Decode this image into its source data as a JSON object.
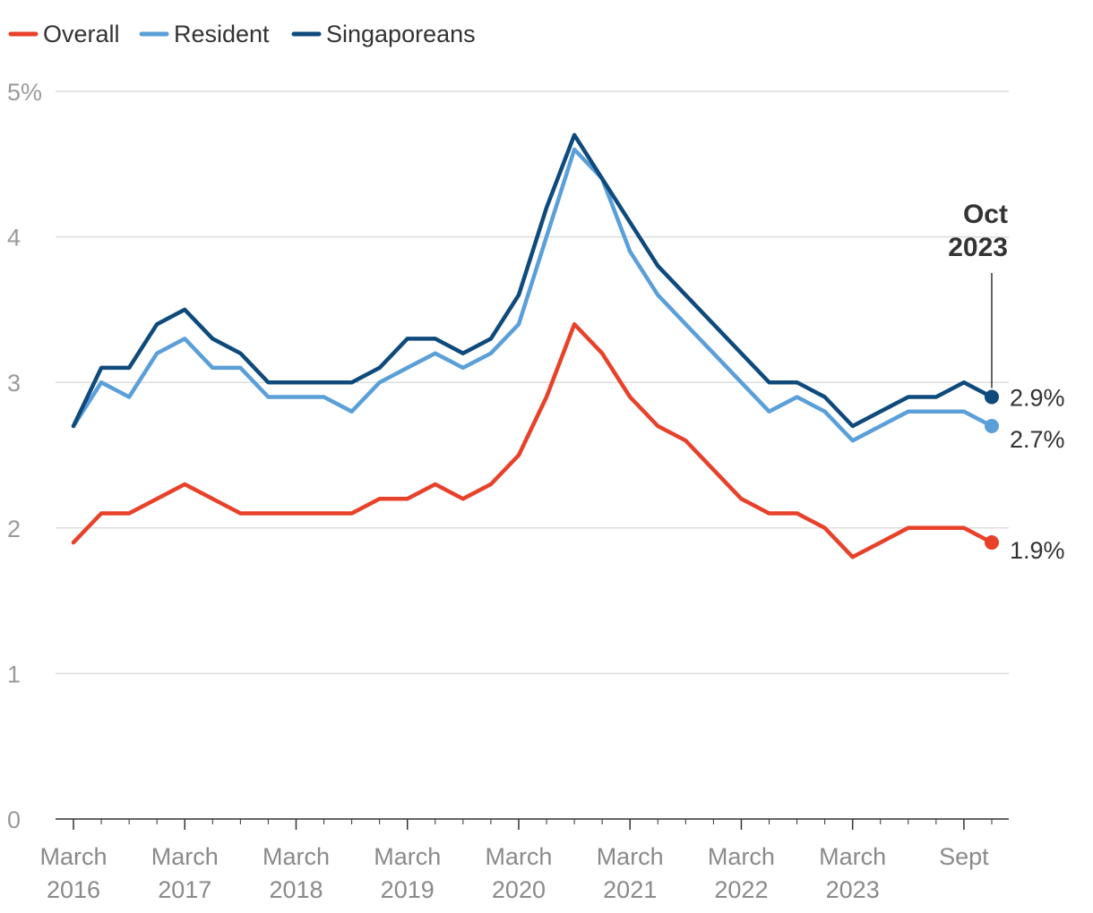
{
  "chart_data": {
    "type": "line",
    "title": "",
    "xlabel": "",
    "ylabel": "",
    "ylim": [
      0,
      5
    ],
    "y_ticks": [
      {
        "value": 0,
        "label": "0"
      },
      {
        "value": 1,
        "label": "1"
      },
      {
        "value": 2,
        "label": "2"
      },
      {
        "value": 3,
        "label": "3"
      },
      {
        "value": 4,
        "label": "4"
      },
      {
        "value": 5,
        "label": "5%"
      }
    ],
    "x_ticks": [
      {
        "index": 0,
        "line1": "March",
        "line2": "2016"
      },
      {
        "index": 4,
        "line1": "March",
        "line2": "2017"
      },
      {
        "index": 8,
        "line1": "March",
        "line2": "2018"
      },
      {
        "index": 12,
        "line1": "March",
        "line2": "2019"
      },
      {
        "index": 16,
        "line1": "March",
        "line2": "2020"
      },
      {
        "index": 20,
        "line1": "March",
        "line2": "2021"
      },
      {
        "index": 24,
        "line1": "March",
        "line2": "2022"
      },
      {
        "index": 28,
        "line1": "March",
        "line2": "2023"
      },
      {
        "index": 32,
        "line1": "Sept",
        "line2": ""
      }
    ],
    "x_count": 34,
    "legend": "top-left",
    "grid": true,
    "annotation": {
      "line1": "Oct",
      "line2": "2023",
      "index": 33
    },
    "series": [
      {
        "name": "Overall",
        "color": "#e8412a",
        "values": [
          1.9,
          2.1,
          2.1,
          2.2,
          2.3,
          2.2,
          2.1,
          2.1,
          2.1,
          2.1,
          2.1,
          2.2,
          2.2,
          2.3,
          2.2,
          2.3,
          2.5,
          2.9,
          3.4,
          3.2,
          2.9,
          2.7,
          2.6,
          2.4,
          2.2,
          2.1,
          2.1,
          2.0,
          1.8,
          1.9,
          2.0,
          2.0,
          2.0,
          1.9
        ],
        "end_label": "1.9%"
      },
      {
        "name": "Resident",
        "color": "#5b9fd9",
        "values": [
          2.7,
          3.0,
          2.9,
          3.2,
          3.3,
          3.1,
          3.1,
          2.9,
          2.9,
          2.9,
          2.8,
          3.0,
          3.1,
          3.2,
          3.1,
          3.2,
          3.4,
          4.0,
          4.6,
          4.4,
          3.9,
          3.6,
          3.4,
          3.2,
          3.0,
          2.8,
          2.9,
          2.8,
          2.6,
          2.7,
          2.8,
          2.8,
          2.8,
          2.7
        ],
        "end_label": "2.7%"
      },
      {
        "name": "Singaporeans",
        "color": "#0e4a7c",
        "values": [
          2.7,
          3.1,
          3.1,
          3.4,
          3.5,
          3.3,
          3.2,
          3.0,
          3.0,
          3.0,
          3.0,
          3.1,
          3.3,
          3.3,
          3.2,
          3.3,
          3.6,
          4.2,
          4.7,
          4.4,
          4.1,
          3.8,
          3.6,
          3.4,
          3.2,
          3.0,
          3.0,
          2.9,
          2.7,
          2.8,
          2.9,
          2.9,
          3.0,
          2.9
        ],
        "end_label": "2.9%"
      }
    ]
  }
}
